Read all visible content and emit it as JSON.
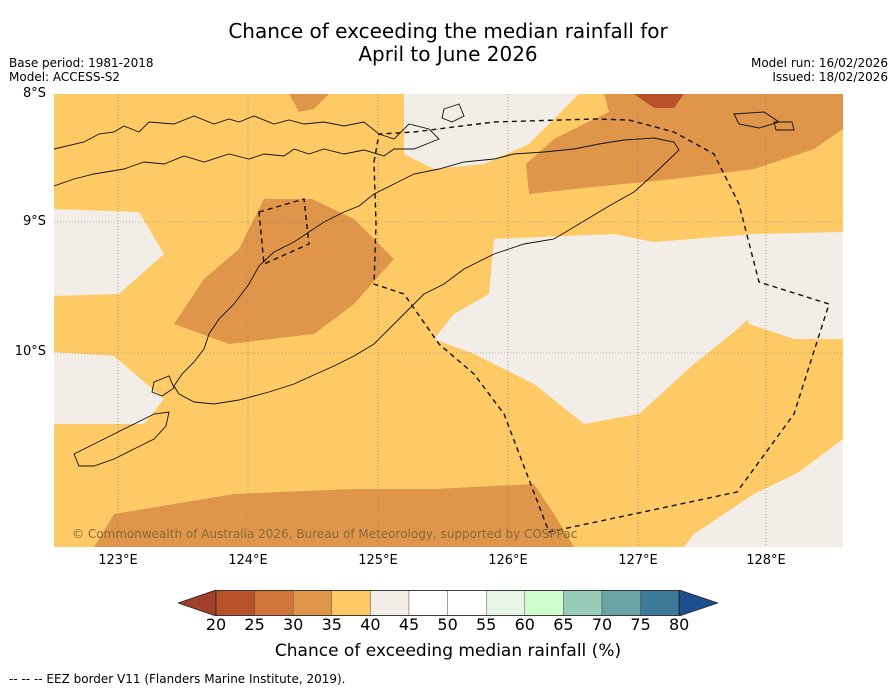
{
  "header": {
    "title_line1": "Chance of exceeding the median rainfall for",
    "title_line2": "April to June 2026",
    "base_period": "Base period: 1981-2018",
    "model": "Model: ACCESS-S2",
    "model_run": "Model run: 16/02/2026",
    "issued": "Issued: 18/02/2026"
  },
  "map": {
    "lat_labels": [
      "8°S",
      "9°S",
      "10°S"
    ],
    "lon_labels": [
      "123°E",
      "124°E",
      "125°E",
      "126°E",
      "127°E",
      "128°E"
    ],
    "copyright": "© Commonwealth of Australia 2026, Bureau of Meteorology, supported by COSPPac"
  },
  "colorbar": {
    "labels": [
      "20",
      "25",
      "30",
      "35",
      "40",
      "45",
      "50",
      "55",
      "60",
      "65",
      "70",
      "75",
      "80"
    ],
    "colors": [
      "#a0402a",
      "#b9522b",
      "#d0743a",
      "#e0964a",
      "#fdca66",
      "#f2ede6",
      "#ffffff",
      "#ffffff",
      "#e6f5e6",
      "#ccffcc",
      "#99ccb8",
      "#6aa4a4",
      "#3d7a99",
      "#1c4f8c"
    ],
    "title": "Chance of exceeding median rainfall (%)"
  },
  "footer": {
    "eez_note": "--  --  -- EEZ border V11 (Flanders Marine Institute, 2019)."
  }
}
